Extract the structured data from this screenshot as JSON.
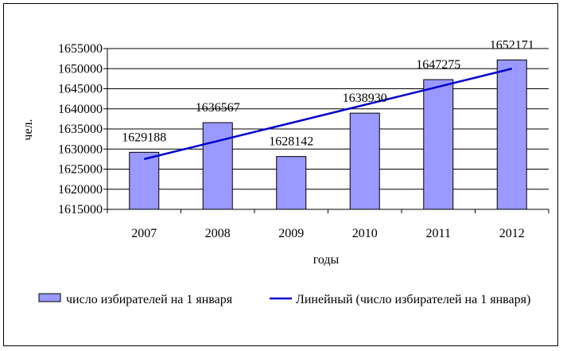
{
  "chart_data": {
    "type": "bar",
    "title": "",
    "xlabel": "годы",
    "ylabel": "чел.",
    "categories": [
      "2007",
      "2008",
      "2009",
      "2010",
      "2011",
      "2012"
    ],
    "series": [
      {
        "name": "число избирателей на 1 января",
        "type": "bar",
        "color": "#9999ff",
        "values": [
          1629188,
          1636567,
          1628142,
          1638930,
          1647275,
          1652171
        ],
        "labels": [
          "1629188",
          "1636567",
          "1628142",
          "1638930",
          "1647275",
          "1652171"
        ]
      },
      {
        "name": "Линейный (число избирателей на 1 января)",
        "type": "line",
        "color": "#0000cc",
        "values": [
          1627500,
          1632000,
          1636500,
          1641000,
          1645500,
          1650000
        ]
      }
    ],
    "ylim": [
      1615000,
      1655000
    ],
    "yticks": [
      "1615000",
      "1620000",
      "1625000",
      "1630000",
      "1635000",
      "1640000",
      "1645000",
      "1650000",
      "1655000"
    ],
    "grid": true,
    "legend_position": "bottom"
  }
}
